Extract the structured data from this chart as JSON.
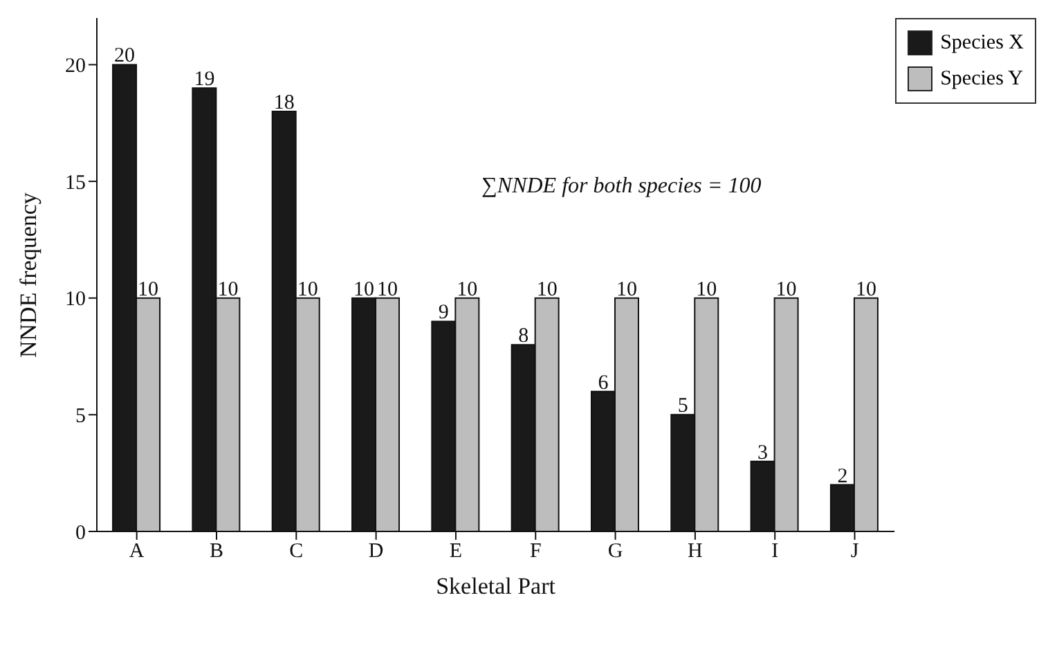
{
  "chart_data": {
    "type": "bar",
    "xlabel": "Skeletal Part",
    "ylabel": "NNDE frequency",
    "categories": [
      "A",
      "B",
      "C",
      "D",
      "E",
      "F",
      "G",
      "H",
      "I",
      "J"
    ],
    "series": [
      {
        "name": "Species X",
        "color": "#1a1a1a",
        "values": [
          20,
          19,
          18,
          10,
          9,
          8,
          6,
          5,
          3,
          2
        ]
      },
      {
        "name": "Species Y",
        "color": "#bdbdbd",
        "values": [
          10,
          10,
          10,
          10,
          10,
          10,
          10,
          10,
          10,
          10
        ]
      }
    ],
    "ylim": [
      0,
      22
    ],
    "yticks": [
      0,
      5,
      10,
      15,
      20
    ],
    "grid": false,
    "legend": "top right",
    "data_labels": true,
    "annotations": [
      "∑NNDE for both species = 100"
    ]
  }
}
